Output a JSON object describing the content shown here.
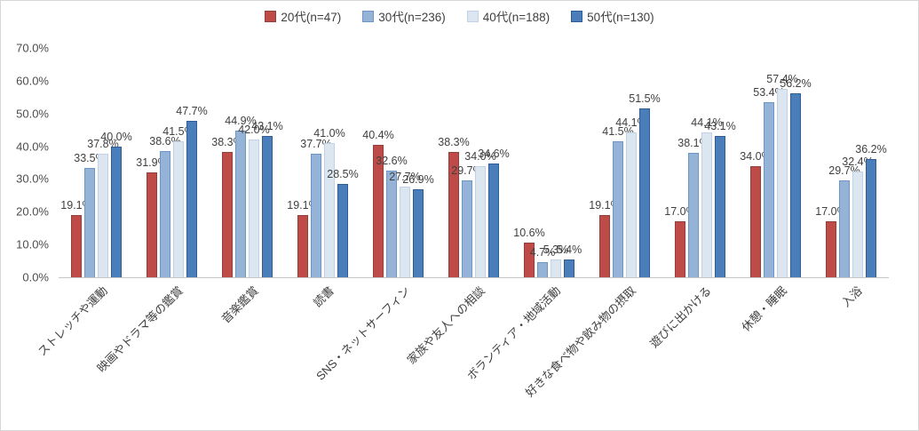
{
  "chart_data": {
    "type": "bar",
    "title": "",
    "xlabel": "",
    "ylabel": "",
    "ylim": [
      0,
      70
    ],
    "ytick_step": 10,
    "ytick_labels": [
      "0.0%",
      "10.0%",
      "20.0%",
      "30.0%",
      "40.0%",
      "50.0%",
      "60.0%",
      "70.0%"
    ],
    "grid": false,
    "legend_position": "top",
    "value_label_format": "one-decimal-percent",
    "categories": [
      "ストレッチや運動",
      "映画やドラマ等の鑑賞",
      "音楽鑑賞",
      "読書",
      "SNS・ネットサーフィン",
      "家族や友人への相談",
      "ボランティア・地域活動",
      "好きな食べ物や飲み物の摂取",
      "遊びに出かける",
      "休憩・睡眠",
      "入浴"
    ],
    "series": [
      {
        "name": "20代(n=47)",
        "color": "#be4b48",
        "border_color": "#93403d",
        "values": [
          19.1,
          31.9,
          38.3,
          19.1,
          40.4,
          38.3,
          10.6,
          19.1,
          17.0,
          34.0,
          17.0
        ]
      },
      {
        "name": "30代(n=236)",
        "color": "#95b3d7",
        "border_color": "#6d96c8",
        "values": [
          33.5,
          38.6,
          44.9,
          37.7,
          32.6,
          29.7,
          4.7,
          41.5,
          38.1,
          53.4,
          29.7
        ]
      },
      {
        "name": "40代(n=188)",
        "color": "#dce6f1",
        "border_color": "#c2d2e6",
        "values": [
          37.8,
          41.5,
          42.0,
          41.0,
          27.7,
          34.0,
          5.3,
          44.1,
          44.1,
          57.4,
          32.4
        ]
      },
      {
        "name": "50代(n=130)",
        "color": "#4a7ebb",
        "border_color": "#2f5c94",
        "values": [
          40.0,
          47.7,
          43.1,
          28.5,
          26.9,
          34.6,
          5.4,
          51.5,
          43.1,
          56.2,
          36.2
        ]
      }
    ]
  }
}
